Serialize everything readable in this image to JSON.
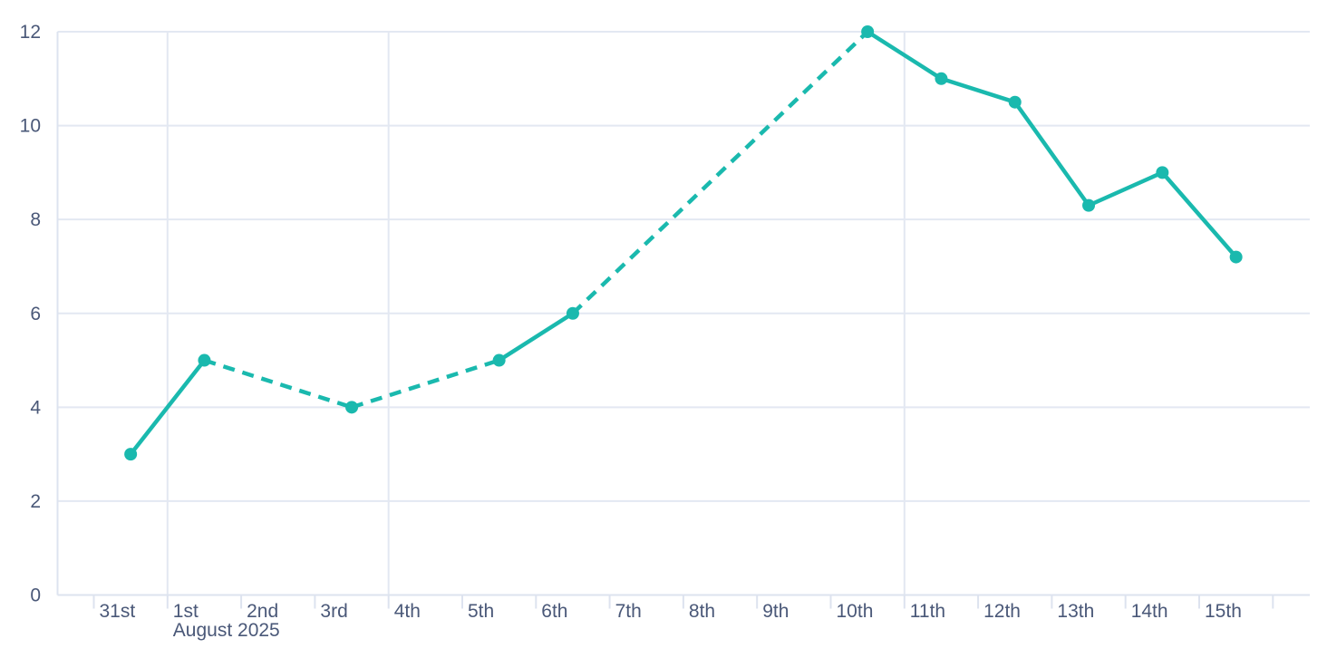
{
  "chart_data": {
    "type": "line",
    "title": "",
    "x_axis": {
      "unit": "day",
      "tick_labels": [
        "31st",
        "1st",
        "2nd",
        "3rd",
        "4th",
        "5th",
        "6th",
        "7th",
        "8th",
        "9th",
        "10th",
        "11th",
        "12th",
        "13th",
        "14th",
        "15th",
        ""
      ],
      "secondary_label": "August 2025",
      "secondary_label_under_index": 1,
      "gridline_tick_indices": [
        1,
        4,
        11
      ]
    },
    "y_axis": {
      "min": 0,
      "max": 12,
      "step": 2,
      "tick_labels": [
        "0",
        "2",
        "4",
        "6",
        "8",
        "10",
        "12"
      ]
    },
    "series": [
      {
        "name": "series-1",
        "color": "#1ab9ae",
        "points": [
          {
            "day_index": 0,
            "label": "31st",
            "value": 3
          },
          {
            "day_index": 1,
            "label": "1st",
            "value": 5
          },
          {
            "day_index": 3,
            "label": "3rd",
            "value": 4
          },
          {
            "day_index": 5,
            "label": "5th",
            "value": 5
          },
          {
            "day_index": 6,
            "label": "6th",
            "value": 6
          },
          {
            "day_index": 10,
            "label": "10th",
            "value": 12
          },
          {
            "day_index": 11,
            "label": "11th",
            "value": 11
          },
          {
            "day_index": 12,
            "label": "12th",
            "value": 10.5
          },
          {
            "day_index": 13,
            "label": "13th",
            "value": 8.3
          },
          {
            "day_index": 14,
            "label": "14th",
            "value": 9
          },
          {
            "day_index": 15,
            "label": "15th",
            "value": 7.2
          }
        ],
        "segment_styles": [
          "solid",
          "dashed",
          "dashed",
          "solid",
          "dashed",
          "solid",
          "solid",
          "solid",
          "solid",
          "solid"
        ]
      }
    ],
    "legend": null,
    "grid": true,
    "colors": {
      "line": "#1ab9ae",
      "axis_label": "#4a5878",
      "gridline": "#e3e8f2",
      "axis_line": "#dde3ef",
      "background": "#ffffff"
    }
  }
}
